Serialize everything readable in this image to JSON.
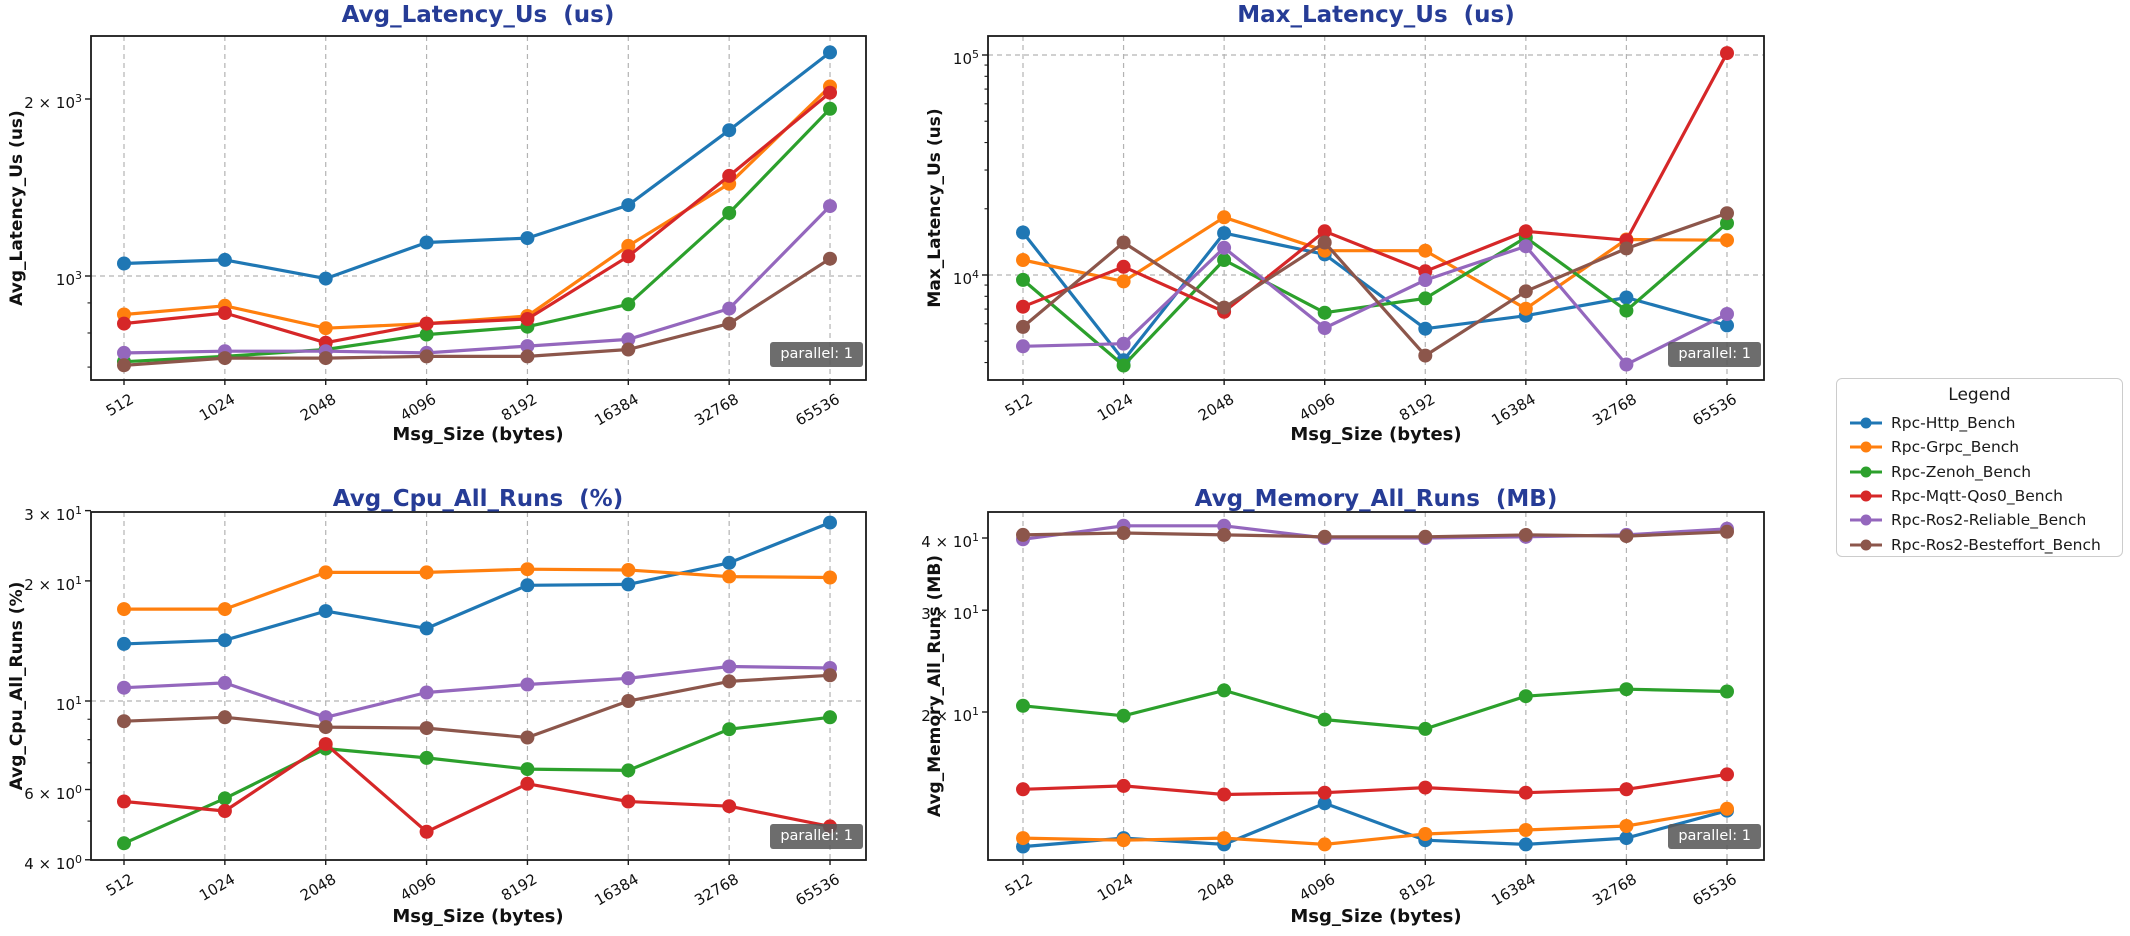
{
  "figure": {
    "background": "#ffffff",
    "title_color": "#263c96",
    "grid_color": "#b3b3b3",
    "axis_color": "#1a1a1a",
    "badge": {
      "text": "parallel: 1",
      "bg": "#595959",
      "fg": "#ffffff"
    }
  },
  "x_axis": {
    "label": "Msg_Size (bytes)",
    "categories": [
      "512",
      "1024",
      "2048",
      "4096",
      "8192",
      "16384",
      "32768",
      "65536"
    ]
  },
  "legend": {
    "title": "Legend",
    "items": [
      {
        "label": "Rpc-Http_Bench",
        "color": "#1f77b4"
      },
      {
        "label": "Rpc-Grpc_Bench",
        "color": "#ff7f0e"
      },
      {
        "label": "Rpc-Zenoh_Bench",
        "color": "#2ca02c"
      },
      {
        "label": "Rpc-Mqtt-Qos0_Bench",
        "color": "#d62728"
      },
      {
        "label": "Rpc-Ros2-Reliable_Bench",
        "color": "#9467bd"
      },
      {
        "label": "Rpc-Ros2-Besteffort_Bench",
        "color": "#8c564b"
      }
    ]
  },
  "chart_data": [
    {
      "id": "avg-latency",
      "type": "line",
      "title": "Avg_Latency_Us  (us)",
      "ylabel": "Avg_Latency_Us (us)",
      "xlabel": "Msg_Size (bytes)",
      "yscale": "log",
      "ylim": [
        665,
        2560
      ],
      "grid": "major",
      "legend_position": "center right (figure)",
      "categories": [
        "512",
        "1024",
        "2048",
        "4096",
        "8192",
        "16384",
        "32768",
        "65536"
      ],
      "yticks": [
        {
          "value": 2000,
          "label": "2 × 10^3",
          "grid": false
        },
        {
          "value": 1000,
          "label": "10^3",
          "grid": true
        }
      ],
      "yticks_minor": [
        700,
        800,
        900
      ],
      "series": [
        {
          "name": "Rpc-Http_Bench",
          "values": [
            1050,
            1065,
            990,
            1140,
            1160,
            1320,
            1770,
            2400
          ]
        },
        {
          "name": "Rpc-Grpc_Bench",
          "values": [
            860,
            890,
            815,
            830,
            855,
            1125,
            1435,
            2100
          ]
        },
        {
          "name": "Rpc-Zenoh_Bench",
          "values": [
            715,
            730,
            750,
            795,
            820,
            895,
            1280,
            1925
          ]
        },
        {
          "name": "Rpc-Mqtt-Qos0_Bench",
          "values": [
            830,
            865,
            770,
            830,
            845,
            1080,
            1480,
            2050
          ]
        },
        {
          "name": "Rpc-Ros2-Reliable_Bench",
          "values": [
            740,
            745,
            745,
            740,
            760,
            780,
            880,
            1315
          ]
        },
        {
          "name": "Rpc-Ros2-Besteffort_Bench",
          "values": [
            705,
            725,
            725,
            730,
            730,
            750,
            830,
            1070
          ]
        }
      ],
      "annotation": "parallel: 1"
    },
    {
      "id": "max-latency",
      "type": "line",
      "title": "Max_Latency_Us  (us)",
      "ylabel": "Max_Latency_Us (us)",
      "xlabel": "Msg_Size (bytes)",
      "yscale": "log",
      "ylim": [
        3330,
        126000
      ],
      "grid": "major",
      "categories": [
        "512",
        "1024",
        "2048",
        "4096",
        "8192",
        "16384",
        "32768",
        "65536"
      ],
      "yticks": [
        {
          "value": 100000,
          "label": "10^5",
          "grid": true
        },
        {
          "value": 10000,
          "label": "10^4",
          "grid": true
        }
      ],
      "yticks_minor": [
        4000,
        5000,
        6000,
        7000,
        8000,
        9000,
        20000,
        30000,
        40000,
        50000,
        60000,
        70000,
        80000,
        90000
      ],
      "series": [
        {
          "name": "Rpc-Http_Bench",
          "values": [
            15600,
            4100,
            15500,
            12400,
            5700,
            6530,
            7900,
            5900
          ]
        },
        {
          "name": "Rpc-Grpc_Bench",
          "values": [
            11700,
            9350,
            18300,
            12900,
            12900,
            7030,
            14500,
            14400
          ]
        },
        {
          "name": "Rpc-Zenoh_Bench",
          "values": [
            9500,
            3880,
            11700,
            6740,
            7830,
            14800,
            6890,
            17200
          ]
        },
        {
          "name": "Rpc-Mqtt-Qos0_Bench",
          "values": [
            7180,
            10900,
            6800,
            15800,
            10400,
            15800,
            14400,
            102000
          ]
        },
        {
          "name": "Rpc-Ros2-Reliable_Bench",
          "values": [
            4740,
            4870,
            13300,
            5740,
            9480,
            13500,
            3920,
            6650
          ]
        },
        {
          "name": "Rpc-Ros2-Besteffort_Bench",
          "values": [
            5810,
            14050,
            7110,
            14050,
            4300,
            8430,
            13200,
            19100
          ]
        }
      ],
      "annotation": "parallel: 1"
    },
    {
      "id": "avg-cpu",
      "type": "line",
      "title": "Avg_Cpu_All_Runs  (%)",
      "ylabel": "Avg_Cpu_All_Runs (%)",
      "xlabel": "Msg_Size (bytes)",
      "yscale": "log",
      "ylim": [
        4.0,
        29.8
      ],
      "grid": "major",
      "categories": [
        "512",
        "1024",
        "2048",
        "4096",
        "8192",
        "16384",
        "32768",
        "65536"
      ],
      "yticks": [
        {
          "value": 30,
          "label": "3 × 10^1",
          "grid": false
        },
        {
          "value": 20,
          "label": "2 × 10^1",
          "grid": false
        },
        {
          "value": 10,
          "label": "10^1",
          "grid": true
        },
        {
          "value": 6,
          "label": "6 × 10^0",
          "grid": false
        },
        {
          "value": 4,
          "label": "4 × 10^0",
          "grid": false
        }
      ],
      "yticks_minor": [
        5,
        7,
        8,
        9
      ],
      "series": [
        {
          "name": "Rpc-Http_Bench",
          "values": [
            13.9,
            14.2,
            16.8,
            15.2,
            19.5,
            19.6,
            22.2,
            28.0
          ]
        },
        {
          "name": "Rpc-Grpc_Bench",
          "values": [
            17.0,
            17.0,
            21.0,
            21.0,
            21.4,
            21.3,
            20.5,
            20.4
          ]
        },
        {
          "name": "Rpc-Zenoh_Bench",
          "values": [
            4.4,
            5.7,
            7.6,
            7.2,
            6.75,
            6.7,
            8.5,
            9.1
          ]
        },
        {
          "name": "Rpc-Mqtt-Qos0_Bench",
          "values": [
            5.6,
            5.3,
            7.8,
            4.7,
            6.2,
            5.6,
            5.45,
            4.85
          ]
        },
        {
          "name": "Rpc-Ros2-Reliable_Bench",
          "values": [
            10.8,
            11.1,
            9.1,
            10.5,
            11.0,
            11.4,
            12.2,
            12.1
          ]
        },
        {
          "name": "Rpc-Ros2-Besteffort_Bench",
          "values": [
            8.9,
            9.1,
            8.6,
            8.55,
            8.1,
            10.0,
            11.2,
            11.6
          ]
        }
      ],
      "annotation": "parallel: 1"
    },
    {
      "id": "avg-memory",
      "type": "line",
      "title": "Avg_Memory_All_Runs  (MB)",
      "ylabel": "Avg_Memory_All_Runs (MB)",
      "xlabel": "Msg_Size (bytes)",
      "yscale": "log",
      "ylim": [
        11.0,
        44.5
      ],
      "grid": "major",
      "categories": [
        "512",
        "1024",
        "2048",
        "4096",
        "8192",
        "16384",
        "32768",
        "65536"
      ],
      "yticks": [
        {
          "value": 40,
          "label": "4 × 10^1",
          "grid": false
        },
        {
          "value": 30,
          "label": "3 × 10^1",
          "grid": false
        },
        {
          "value": 20,
          "label": "2 × 10^1",
          "grid": false
        }
      ],
      "yticks_minor": [],
      "series": [
        {
          "name": "Rpc-Http_Bench",
          "values": [
            11.7,
            12.1,
            11.8,
            13.9,
            12.0,
            11.8,
            12.1,
            13.5
          ]
        },
        {
          "name": "Rpc-Grpc_Bench",
          "values": [
            12.1,
            12.0,
            12.1,
            11.8,
            12.3,
            12.5,
            12.7,
            13.6
          ]
        },
        {
          "name": "Rpc-Zenoh_Bench",
          "values": [
            20.5,
            19.7,
            21.8,
            19.4,
            18.7,
            21.3,
            21.9,
            21.7
          ]
        },
        {
          "name": "Rpc-Mqtt-Qos0_Bench",
          "values": [
            14.7,
            14.9,
            14.4,
            14.5,
            14.8,
            14.5,
            14.7,
            15.6
          ]
        },
        {
          "name": "Rpc-Ros2-Reliable_Bench",
          "values": [
            39.8,
            42.0,
            42.0,
            40.0,
            40.0,
            40.2,
            40.5,
            41.5
          ]
        },
        {
          "name": "Rpc-Ros2-Besteffort_Bench",
          "values": [
            40.5,
            40.8,
            40.5,
            40.2,
            40.2,
            40.5,
            40.3,
            41.0
          ]
        }
      ],
      "annotation": "parallel: 1"
    }
  ]
}
